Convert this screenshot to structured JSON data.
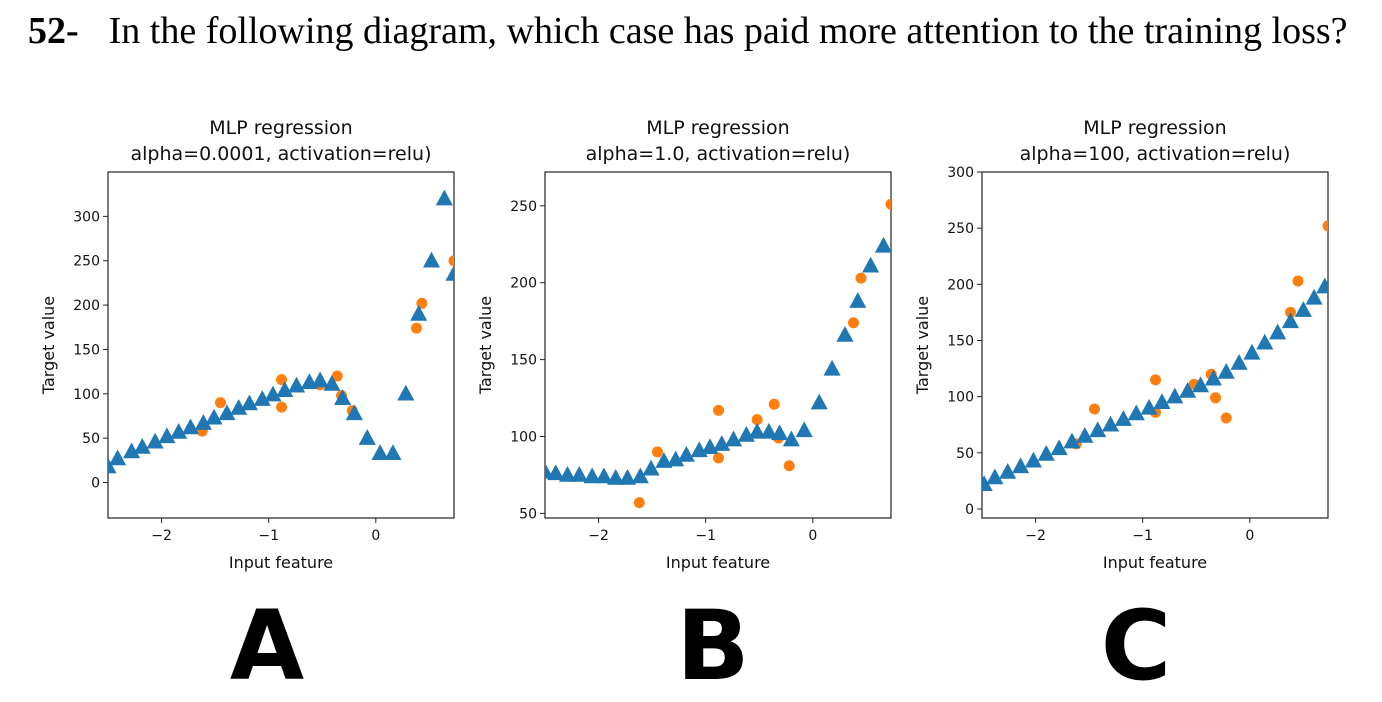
{
  "question": {
    "number": "52-",
    "text": "In the following diagram, which case has paid more attention to the training loss?"
  },
  "colors": {
    "model": "#1f77b4",
    "data": "#ff7f0e"
  },
  "panels": [
    {
      "letter": "A"
    },
    {
      "letter": "B"
    },
    {
      "letter": "C"
    }
  ],
  "chart_data": [
    {
      "type": "scatter",
      "title": "MLP regression",
      "subtitle": "alpha=0.0001, activation=relu)",
      "xlabel": "Input feature",
      "ylabel": "Target value",
      "xlim": [
        -2.5,
        0.73
      ],
      "ylim": [
        -40,
        350
      ],
      "xticks": [
        -2,
        -1,
        0
      ],
      "xtick_labels": [
        "−2",
        "−1",
        "0"
      ],
      "yticks": [
        0,
        50,
        100,
        150,
        200,
        250,
        300
      ],
      "ytick_labels": [
        "0",
        "50",
        "100",
        "150",
        "200",
        "250",
        "300"
      ],
      "series": [
        {
          "marker": "triangle",
          "x": [
            -2.5,
            -2.41,
            -2.28,
            -2.18,
            -2.06,
            -1.95,
            -1.84,
            -1.73,
            -1.61,
            -1.51,
            -1.39,
            -1.28,
            -1.18,
            -1.06,
            -0.96,
            -0.85,
            -0.74,
            -0.62,
            -0.52,
            -0.41,
            -0.31,
            -0.2,
            -0.08,
            0.04,
            0.16,
            0.28,
            0.4,
            0.52,
            0.64,
            0.73
          ],
          "values": [
            18,
            27,
            35,
            40,
            46,
            52,
            57,
            62,
            67,
            73,
            78,
            84,
            89,
            94,
            99,
            104,
            109,
            113,
            115,
            111,
            95,
            78,
            50,
            33,
            33,
            100,
            190,
            250,
            320,
            235
          ]
        },
        {
          "marker": "circle",
          "x": [
            -1.62,
            -1.45,
            -0.88,
            -0.88,
            -0.52,
            -0.36,
            -0.32,
            -0.22,
            0.38,
            0.43,
            0.73
          ],
          "values": [
            58,
            90,
            116,
            85,
            110,
            120,
            98,
            81,
            174,
            202,
            250
          ]
        }
      ]
    },
    {
      "type": "scatter",
      "title": "MLP regression",
      "subtitle": "alpha=1.0, activation=relu)",
      "xlabel": "Input feature",
      "ylabel": "Target value",
      "xlim": [
        -2.5,
        0.73
      ],
      "ylim": [
        47,
        272
      ],
      "xticks": [
        -2,
        -1,
        0
      ],
      "xtick_labels": [
        "−2",
        "−1",
        "0"
      ],
      "yticks": [
        50,
        100,
        150,
        200,
        250
      ],
      "ytick_labels": [
        "50",
        "100",
        "150",
        "200",
        "250"
      ],
      "series": [
        {
          "marker": "triangle",
          "x": [
            -2.5,
            -2.4,
            -2.29,
            -2.18,
            -2.06,
            -1.95,
            -1.84,
            -1.73,
            -1.61,
            -1.51,
            -1.39,
            -1.28,
            -1.18,
            -1.06,
            -0.96,
            -0.85,
            -0.74,
            -0.62,
            -0.52,
            -0.41,
            -0.31,
            -0.2,
            -0.08,
            0.06,
            0.18,
            0.3,
            0.42,
            0.54,
            0.66
          ],
          "values": [
            77,
            76,
            75,
            75,
            74,
            74,
            73,
            73,
            74,
            79,
            84,
            85,
            88,
            91,
            93,
            95,
            98,
            101,
            103,
            103,
            102,
            98,
            104,
            122,
            144,
            166,
            188,
            211,
            224
          ]
        },
        {
          "marker": "circle",
          "x": [
            -1.62,
            -1.45,
            -0.88,
            -0.88,
            -0.52,
            -0.36,
            -0.32,
            -0.22,
            0.38,
            0.45,
            0.73
          ],
          "values": [
            57,
            90,
            117,
            86,
            111,
            121,
            99,
            81,
            174,
            203,
            251
          ]
        }
      ]
    },
    {
      "type": "scatter",
      "title": "MLP regression",
      "subtitle": "alpha=100, activation=relu)",
      "xlabel": "Input feature",
      "ylabel": "Target value",
      "xlim": [
        -2.5,
        0.73
      ],
      "ylim": [
        -8,
        300
      ],
      "xticks": [
        -2,
        -1,
        0
      ],
      "xtick_labels": [
        "−2",
        "−1",
        "0"
      ],
      "yticks": [
        0,
        50,
        100,
        150,
        200,
        250,
        300
      ],
      "ytick_labels": [
        "0",
        "50",
        "100",
        "150",
        "200",
        "250",
        "300"
      ],
      "series": [
        {
          "marker": "triangle",
          "x": [
            -2.48,
            -2.38,
            -2.26,
            -2.14,
            -2.02,
            -1.9,
            -1.78,
            -1.66,
            -1.54,
            -1.42,
            -1.3,
            -1.18,
            -1.06,
            -0.94,
            -0.82,
            -0.7,
            -0.58,
            -0.46,
            -0.34,
            -0.22,
            -0.1,
            0.02,
            0.14,
            0.26,
            0.38,
            0.5,
            0.6,
            0.7
          ],
          "values": [
            22,
            28,
            33,
            38,
            43,
            49,
            54,
            60,
            65,
            70,
            75,
            80,
            85,
            90,
            95,
            100,
            105,
            110,
            116,
            122,
            130,
            139,
            148,
            157,
            167,
            177,
            188,
            198
          ]
        },
        {
          "marker": "circle",
          "x": [
            -1.62,
            -1.45,
            -0.88,
            -0.88,
            -0.52,
            -0.36,
            -0.32,
            -0.22,
            0.38,
            0.45,
            0.73
          ],
          "values": [
            58,
            89,
            115,
            86,
            111,
            120,
            99,
            81,
            175,
            203,
            252
          ]
        }
      ]
    }
  ]
}
